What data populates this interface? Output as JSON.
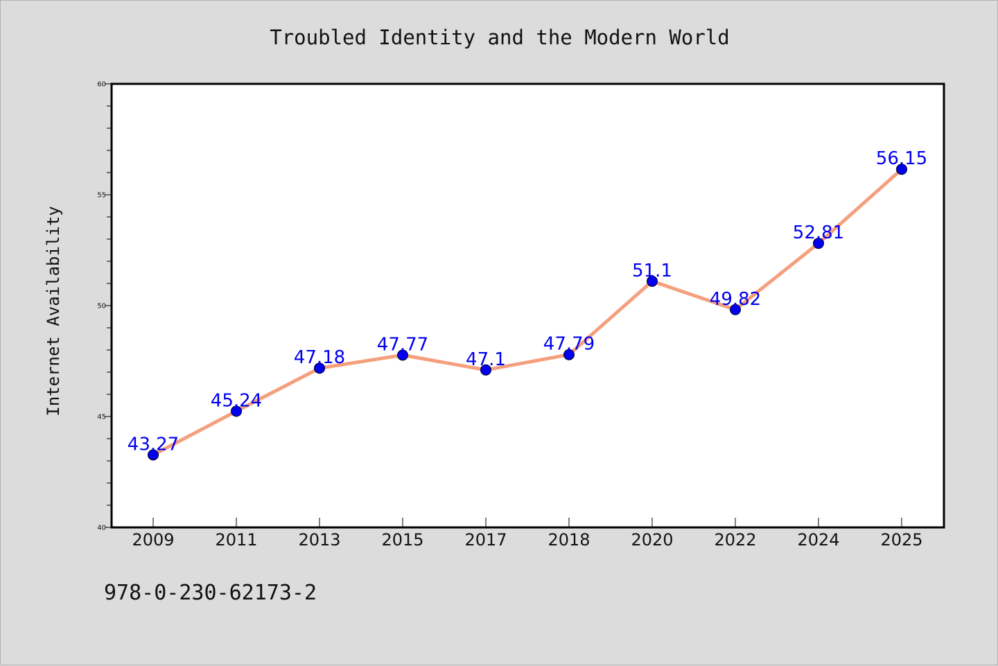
{
  "footer": {
    "isbn": "978-0-230-62173-2"
  },
  "colors": {
    "background": "#dcdcdc",
    "plot_background": "#ffffff",
    "line": "#f4a07e",
    "marker": "#0000ee",
    "data_label": "#0000ee"
  },
  "chart_data": {
    "type": "line",
    "title": "Troubled Identity and the Modern World",
    "xlabel": "",
    "ylabel": "Internet Availability",
    "categories": [
      "2009",
      "2011",
      "2013",
      "2015",
      "2017",
      "2018",
      "2020",
      "2022",
      "2024",
      "2025"
    ],
    "series": [
      {
        "values": [
          43.27,
          45.24,
          47.18,
          47.77,
          47.1,
          47.79,
          51.1,
          49.82,
          52.81,
          56.15
        ],
        "labels": [
          "43.27",
          "45.24",
          "47.18",
          "47.77",
          "47.1",
          "47.79",
          "51.1",
          "49.82",
          "52.81",
          "56.15"
        ]
      }
    ],
    "ylim": [
      40,
      60
    ],
    "yticks": [
      "40",
      "45",
      "50",
      "55",
      "60"
    ],
    "grid": false,
    "legend": "none"
  }
}
